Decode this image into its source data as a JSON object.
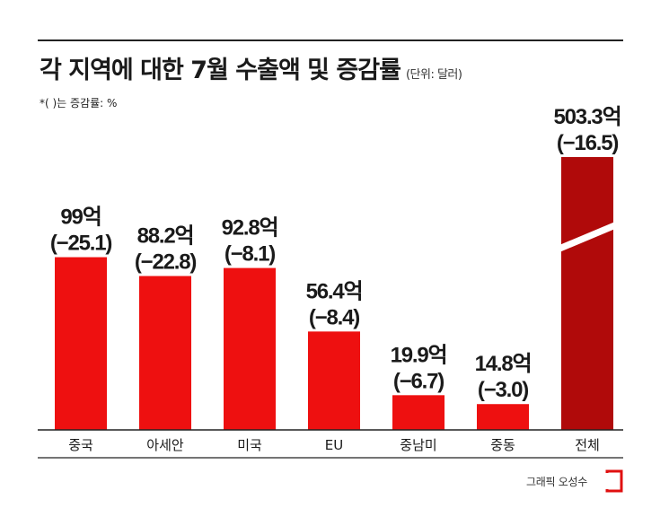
{
  "title": "각 지역에 대한 7월 수출액 및 증감률",
  "unit": "(단위: 달러)",
  "note": "*( )는 증감률: %",
  "credit": "그래픽 오성수",
  "colors": {
    "bar": "#ee1010",
    "total_bar": "#b00a0a",
    "axis": "#222222"
  },
  "logo_icon": "red-bracket-logo-icon",
  "chart_data": {
    "type": "bar",
    "title": "각 지역에 대한 7월 수출액 및 증감률",
    "xlabel": "",
    "ylabel": "",
    "unit": "달러",
    "categories": [
      "중국",
      "아세안",
      "미국",
      "EU",
      "중남미",
      "중동",
      "전체"
    ],
    "values": [
      99,
      88.2,
      92.8,
      56.4,
      19.9,
      14.8,
      503.3
    ],
    "value_labels": [
      "99억",
      "88.2억",
      "92.8억",
      "56.4억",
      "19.9억",
      "14.8억",
      "503.3억"
    ],
    "change_rates": [
      -25.1,
      -22.8,
      -8.1,
      -8.4,
      -6.7,
      -3.0,
      -16.5
    ],
    "change_labels": [
      "(−25.1)",
      "(−22.8)",
      "(−8.1)",
      "(−8.4)",
      "(−6.7)",
      "(−3.0)",
      "(−16.5)"
    ],
    "broken_axis_category": "전체",
    "grid": false,
    "legend": "none"
  }
}
